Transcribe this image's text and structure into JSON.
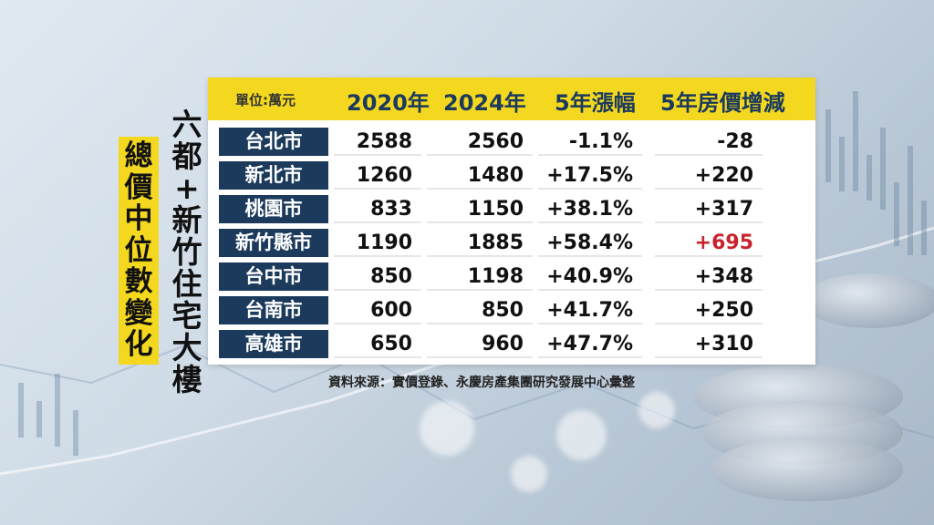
{
  "title_yellow": [
    "總",
    "價",
    "中",
    "位",
    "數",
    "變",
    "化"
  ],
  "title_black": [
    "六",
    "都",
    "+",
    "新",
    "竹",
    "住",
    "宅",
    "大",
    "樓"
  ],
  "table": {
    "unit_label": "單位:萬元",
    "columns": [
      "2020年",
      "2024年",
      "5年漲幅",
      "5年房價增減"
    ],
    "rows": [
      {
        "city": "台北市",
        "p2020": "2588",
        "p2024": "2560",
        "rate": "-1.1%",
        "change": "-28",
        "highlight": false
      },
      {
        "city": "新北市",
        "p2020": "1260",
        "p2024": "1480",
        "rate": "+17.5%",
        "change": "+220",
        "highlight": false
      },
      {
        "city": "桃園市",
        "p2020": "833",
        "p2024": "1150",
        "rate": "+38.1%",
        "change": "+317",
        "highlight": false
      },
      {
        "city": "新竹縣市",
        "p2020": "1190",
        "p2024": "1885",
        "rate": "+58.4%",
        "change": "+695",
        "highlight": true
      },
      {
        "city": "台中市",
        "p2020": "850",
        "p2024": "1198",
        "rate": "+40.9%",
        "change": "+348",
        "highlight": false
      },
      {
        "city": "台南市",
        "p2020": "600",
        "p2024": "850",
        "rate": "+41.7%",
        "change": "+250",
        "highlight": false
      },
      {
        "city": "高雄市",
        "p2020": "650",
        "p2024": "960",
        "rate": "+47.7%",
        "change": "+310",
        "highlight": false
      }
    ]
  },
  "source": "資料來源：實價登錄、永慶房產集團研究發展中心彙整",
  "colors": {
    "accent_yellow": "#f4d81f",
    "navy": "#1b3a5c",
    "highlight_red": "#c8232c"
  }
}
